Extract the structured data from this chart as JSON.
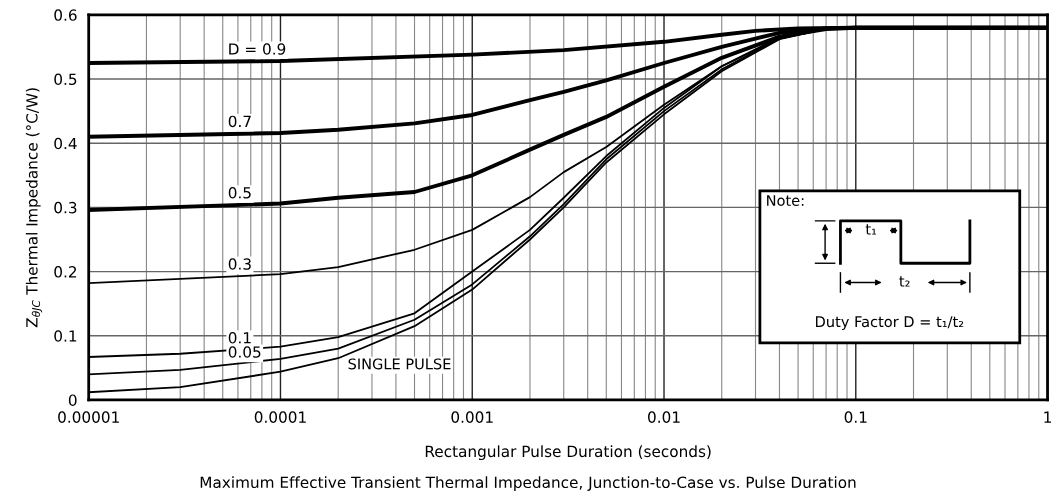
{
  "chart_data": {
    "type": "line",
    "xlabel": "Rectangular Pulse Duration (seconds)",
    "ylabel": "Z$_{θJC}$ Thermal Impedance (°C/W)",
    "annotations": [
      "Maximum Effective Transient Thermal Impedance, Junction-to-Case vs. Pulse Duration",
      "Note:",
      "t₁",
      "t₂",
      "Duty Factor D = t₁/t₂"
    ],
    "log": "x",
    "grid": true,
    "legend": false,
    "marker": "none",
    "line_style": "solid",
    "xlim": [
      1e-05,
      1
    ],
    "ylim": [
      0,
      0.6
    ],
    "xticks": [
      {
        "value": 1e-05,
        "label": "0.00001"
      },
      {
        "value": 0.0001,
        "label": "0.0001"
      },
      {
        "value": 0.001,
        "label": "0.001"
      },
      {
        "value": 0.01,
        "label": "0.01"
      },
      {
        "value": 0.1,
        "label": "0.1"
      },
      1
    ],
    "yticks": [
      0,
      0.1,
      0.2,
      0.3,
      0.4,
      0.5,
      0.6
    ],
    "series": [
      {
        "name": "D = 0.9",
        "color": "#000000",
        "x": [
          1e-05,
          0.0001,
          0.001,
          0.003,
          0.01,
          0.02,
          0.03,
          0.05,
          0.1,
          1
        ],
        "values": [
          0.525,
          0.528,
          0.538,
          0.545,
          0.558,
          0.569,
          0.575,
          0.579,
          0.58,
          0.58
        ]
      },
      {
        "name": "0.7",
        "color": "#000000",
        "x": [
          1e-05,
          0.0001,
          0.0002,
          0.0005,
          0.001,
          0.002,
          0.003,
          0.005,
          0.01,
          0.02,
          0.04,
          0.07,
          0.1,
          1
        ],
        "values": [
          0.41,
          0.416,
          0.421,
          0.431,
          0.444,
          0.467,
          0.48,
          0.498,
          0.525,
          0.55,
          0.572,
          0.579,
          0.58,
          0.58
        ]
      },
      {
        "name": "0.5",
        "color": "#000000",
        "x": [
          1e-05,
          0.0001,
          0.0002,
          0.0005,
          0.001,
          0.002,
          0.003,
          0.005,
          0.01,
          0.02,
          0.04,
          0.07,
          0.1,
          1
        ],
        "values": [
          0.296,
          0.306,
          0.315,
          0.324,
          0.35,
          0.39,
          0.413,
          0.441,
          0.488,
          0.533,
          0.566,
          0.578,
          0.58,
          0.58
        ]
      },
      {
        "name": "0.3",
        "color": "#000000",
        "x": [
          1e-05,
          0.0001,
          0.0002,
          0.0005,
          0.001,
          0.002,
          0.003,
          0.005,
          0.01,
          0.02,
          0.04,
          0.07,
          0.1,
          1
        ],
        "values": [
          0.182,
          0.196,
          0.207,
          0.234,
          0.265,
          0.316,
          0.355,
          0.394,
          0.46,
          0.52,
          0.563,
          0.578,
          0.58,
          0.58
        ]
      },
      {
        "name": "0.1",
        "color": "#000000",
        "x": [
          1e-05,
          3e-05,
          0.0001,
          0.0002,
          0.0005,
          0.001,
          0.002,
          0.003,
          0.005,
          0.01,
          0.02,
          0.04,
          0.07,
          0.1,
          1
        ],
        "values": [
          0.067,
          0.072,
          0.083,
          0.098,
          0.135,
          0.2,
          0.265,
          0.315,
          0.38,
          0.455,
          0.52,
          0.565,
          0.578,
          0.58,
          0.58
        ]
      },
      {
        "name": "0.05",
        "color": "#000000",
        "x": [
          1e-05,
          3e-05,
          0.0001,
          0.0002,
          0.0005,
          0.001,
          0.002,
          0.003,
          0.005,
          0.01,
          0.02,
          0.04,
          0.07,
          0.1,
          1
        ],
        "values": [
          0.04,
          0.047,
          0.064,
          0.08,
          0.125,
          0.18,
          0.255,
          0.305,
          0.375,
          0.45,
          0.515,
          0.563,
          0.578,
          0.58,
          0.58
        ]
      },
      {
        "name": "SINGLE PULSE",
        "color": "#000000",
        "x": [
          1e-05,
          3e-05,
          0.0001,
          0.0002,
          0.0005,
          0.001,
          0.002,
          0.003,
          0.005,
          0.01,
          0.02,
          0.04,
          0.07,
          0.1,
          1
        ],
        "values": [
          0.012,
          0.02,
          0.044,
          0.065,
          0.115,
          0.172,
          0.25,
          0.3,
          0.37,
          0.445,
          0.512,
          0.562,
          0.578,
          0.58,
          0.58
        ]
      }
    ]
  }
}
